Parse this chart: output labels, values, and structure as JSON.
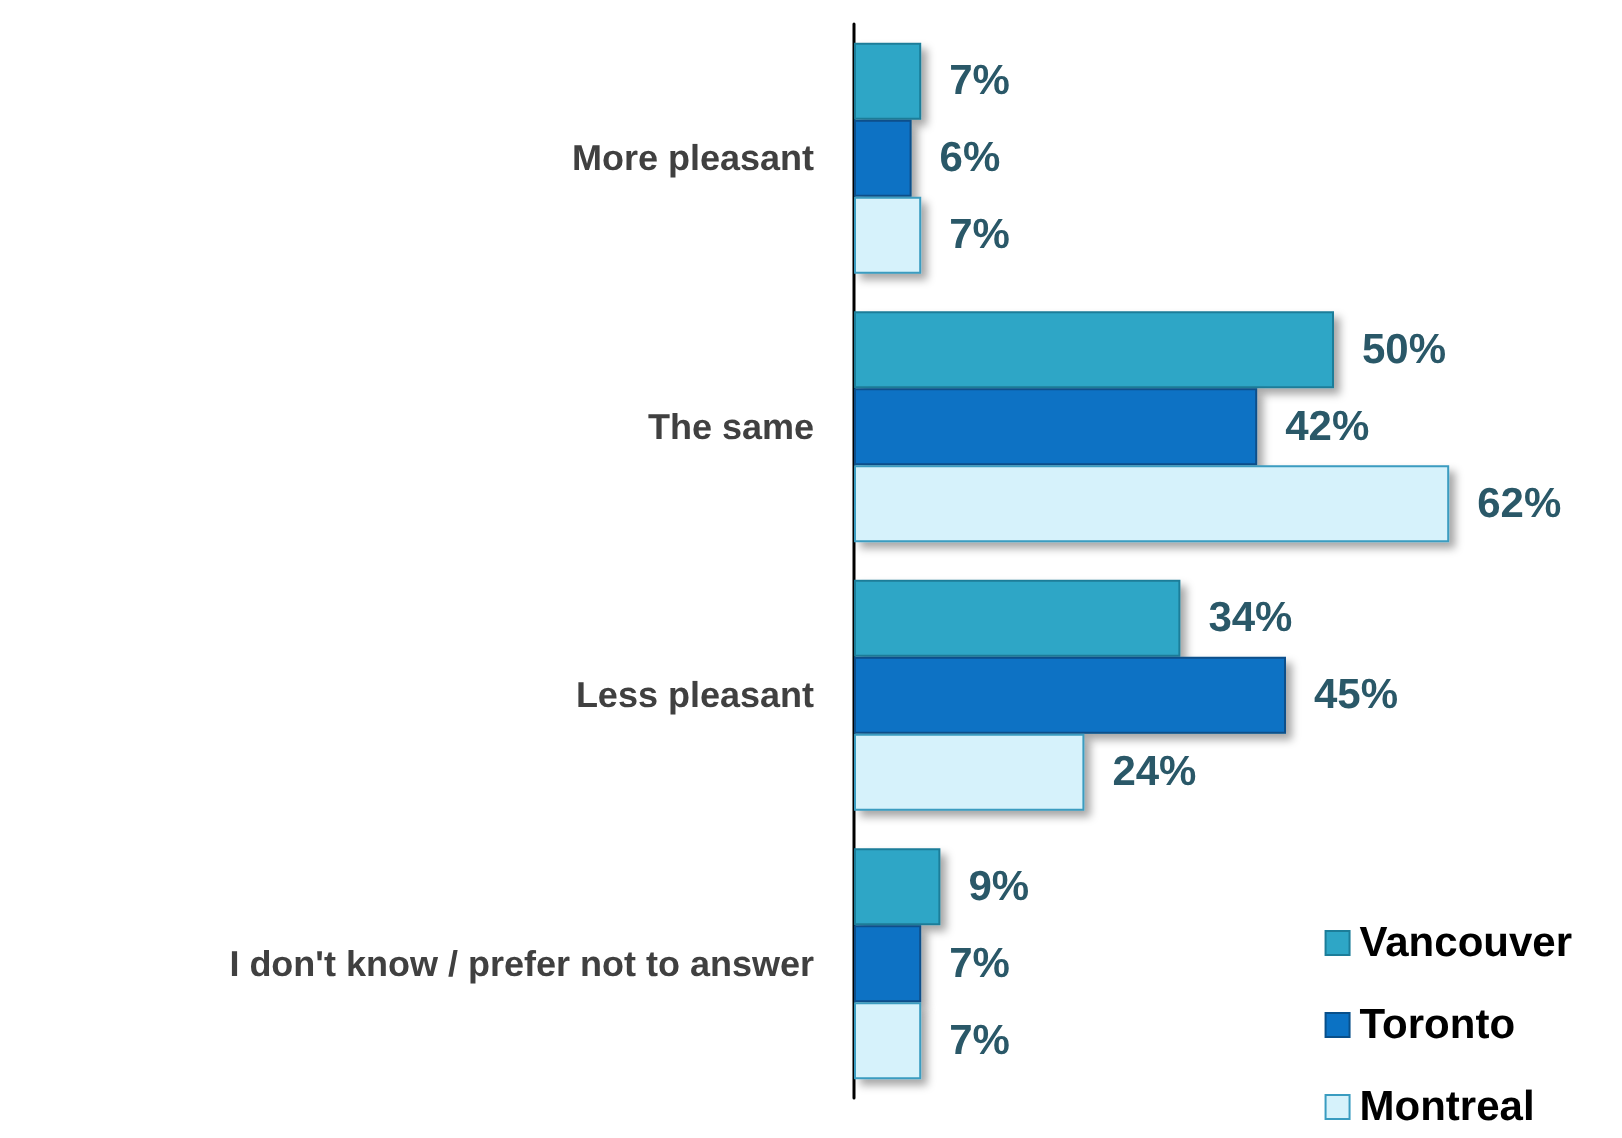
{
  "chart_data": {
    "type": "bar",
    "orientation": "horizontal",
    "categories": [
      "More pleasant",
      "The same",
      "Less pleasant",
      "I don't know / prefer not to answer"
    ],
    "series": [
      {
        "name": "Vancouver",
        "color": "#2ea6c6",
        "values": [
          7,
          50,
          34,
          9
        ],
        "value_labels": [
          "7%",
          "50%",
          "34%",
          "9%"
        ]
      },
      {
        "name": "Toronto",
        "color": "#0b72c4",
        "values": [
          6,
          42,
          45,
          7
        ],
        "value_labels": [
          "6%",
          "42%",
          "45%",
          "7%"
        ]
      },
      {
        "name": "Montreal",
        "color": "#d6f2fb",
        "values": [
          7,
          62,
          24,
          7
        ],
        "value_labels": [
          "7%",
          "62%",
          "24%",
          "7%"
        ]
      }
    ],
    "legend": "bottom right"
  }
}
